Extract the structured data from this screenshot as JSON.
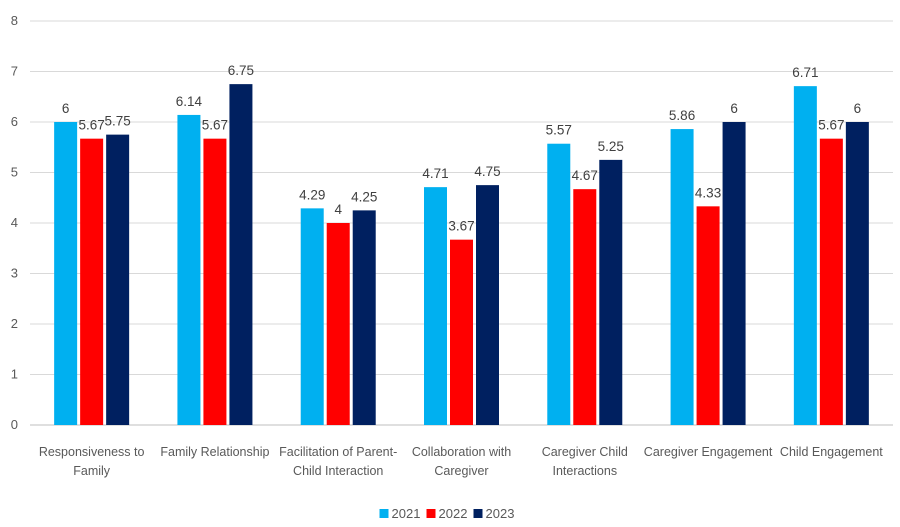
{
  "chart_data": {
    "type": "bar",
    "title": "",
    "xlabel": "",
    "ylabel": "",
    "ylim": [
      0,
      8
    ],
    "yticks": [
      0,
      1,
      2,
      3,
      4,
      5,
      6,
      7,
      8
    ],
    "grid": true,
    "legend_position": "bottom",
    "categories": [
      [
        "Responsiveness to",
        "Family"
      ],
      [
        "Family Relationship"
      ],
      [
        "Facilitation of Parent-",
        "Child Interaction"
      ],
      [
        "Collaboration with",
        "Caregiver"
      ],
      [
        "Caregiver Child",
        "Interactions"
      ],
      [
        "Caregiver Engagement"
      ],
      [
        "Child Engagement"
      ]
    ],
    "series": [
      {
        "name": "2021",
        "color": "#00B0F0",
        "values": [
          6,
          6.14,
          4.29,
          4.71,
          5.57,
          5.86,
          6.71
        ]
      },
      {
        "name": "2022",
        "color": "#FF0000",
        "values": [
          5.67,
          5.67,
          4,
          3.67,
          4.67,
          4.33,
          5.67
        ]
      },
      {
        "name": "2023",
        "color": "#002060",
        "values": [
          5.75,
          6.75,
          4.25,
          4.75,
          5.25,
          6,
          6
        ]
      }
    ]
  }
}
